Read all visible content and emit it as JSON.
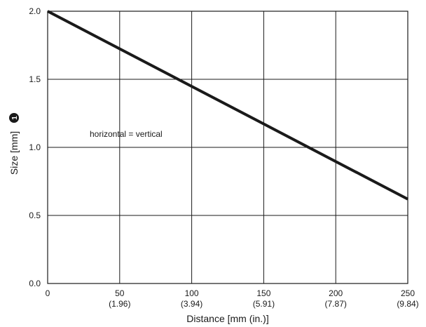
{
  "chart_data": {
    "type": "line",
    "title": "",
    "xlabel": "Distance [mm (in.)]",
    "ylabel": "Size [mm]",
    "ylabel_marker": "1",
    "annotation": "horizontal = vertical",
    "xlim": [
      0,
      250
    ],
    "ylim": [
      0.0,
      2.0
    ],
    "grid": true,
    "x_ticks": [
      {
        "value": 0,
        "label": "0",
        "sub": ""
      },
      {
        "value": 50,
        "label": "50",
        "sub": "(1.96)"
      },
      {
        "value": 100,
        "label": "100",
        "sub": "(3.94)"
      },
      {
        "value": 150,
        "label": "150",
        "sub": "(5.91)"
      },
      {
        "value": 200,
        "label": "200",
        "sub": "(7.87)"
      },
      {
        "value": 250,
        "label": "250",
        "sub": "(9.84)"
      }
    ],
    "y_ticks": [
      {
        "value": 0.0,
        "label": "0.0"
      },
      {
        "value": 0.5,
        "label": "0.5"
      },
      {
        "value": 1.0,
        "label": "1.0"
      },
      {
        "value": 1.5,
        "label": "1.5"
      },
      {
        "value": 2.0,
        "label": "2.0"
      }
    ],
    "series": [
      {
        "x": [
          0,
          250
        ],
        "y": [
          2.0,
          0.62
        ]
      }
    ],
    "colors": {
      "line": "#1a1a1a",
      "grid": "#1a1a1a"
    }
  }
}
